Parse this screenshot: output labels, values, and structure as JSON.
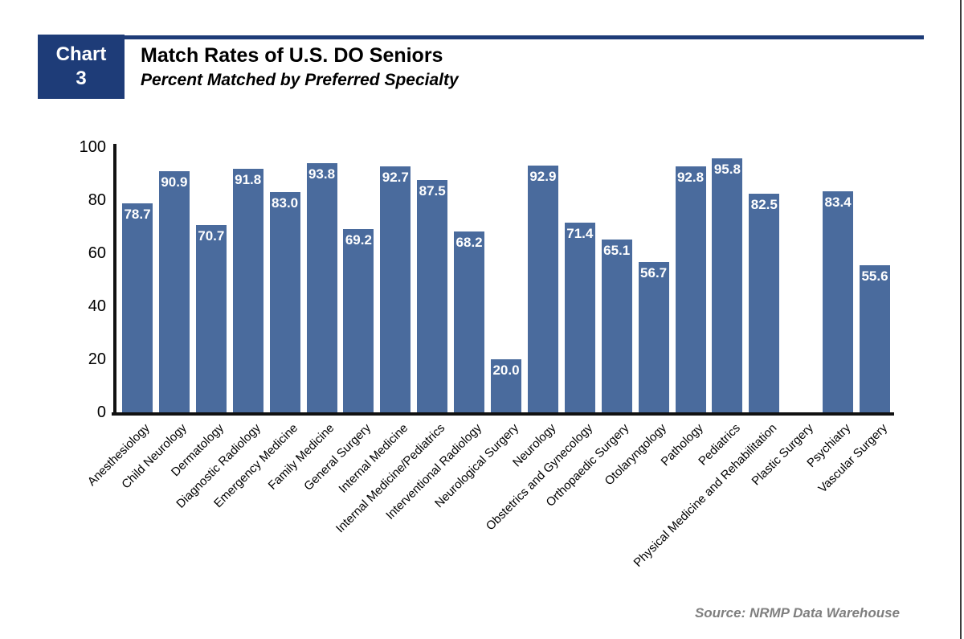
{
  "header": {
    "badge_line1": "Chart",
    "badge_line2": "3",
    "title": "Match Rates of U.S. DO Seniors",
    "subtitle": "Percent Matched by Preferred Specialty"
  },
  "footer": {
    "source": "Source: NRMP Data Warehouse"
  },
  "colors": {
    "navy_accent": "#1e3c78",
    "bar_blue": "#4a6b9d",
    "axis_black": "#111111",
    "value_label_white": "#ffffff",
    "source_gray": "#7f7f7f"
  },
  "chart_data": {
    "type": "bar",
    "title": "Match Rates of U.S. DO Seniors",
    "subtitle": "Percent Matched by Preferred Specialty",
    "xlabel": "",
    "ylabel": "",
    "ylim": [
      0,
      100
    ],
    "yticks": [
      0,
      20,
      40,
      60,
      80,
      100
    ],
    "grid": false,
    "legend": "none",
    "value_label_style": "inside bar top, white bold, one decimal",
    "categories": [
      "Anesthesiology",
      "Child Neurology",
      "Dermatology",
      "Diagnostic Radiology",
      "Emergency Medicine",
      "Family Medicine",
      "General Surgery",
      "Internal Medicine",
      "Internal Medicine/Pediatrics",
      "Interventional Radiology",
      "Neurological Surgery",
      "Neurology",
      "Obstetrics and Gynecology",
      "Orthopaedic Surgery",
      "Otolaryngology",
      "Pathology",
      "Pediatrics",
      "Physical Medicine and Rehabilitation",
      "Plastic Surgery",
      "Psychiatry",
      "Vascular Surgery"
    ],
    "values": [
      78.7,
      90.9,
      70.7,
      91.8,
      83.0,
      93.8,
      69.2,
      92.7,
      87.5,
      68.2,
      20.0,
      92.9,
      71.4,
      65.1,
      56.7,
      92.8,
      95.8,
      82.5,
      null,
      83.4,
      55.6
    ],
    "value_labels": [
      "78.7",
      "90.9",
      "70.7",
      "91.8",
      "83.0",
      "93.8",
      "69.2",
      "92.7",
      "87.5",
      "68.2",
      "20.0",
      "92.9",
      "71.4",
      "65.1",
      "56.7",
      "92.8",
      "95.8",
      "82.5",
      null,
      "83.4",
      "55.6"
    ]
  }
}
